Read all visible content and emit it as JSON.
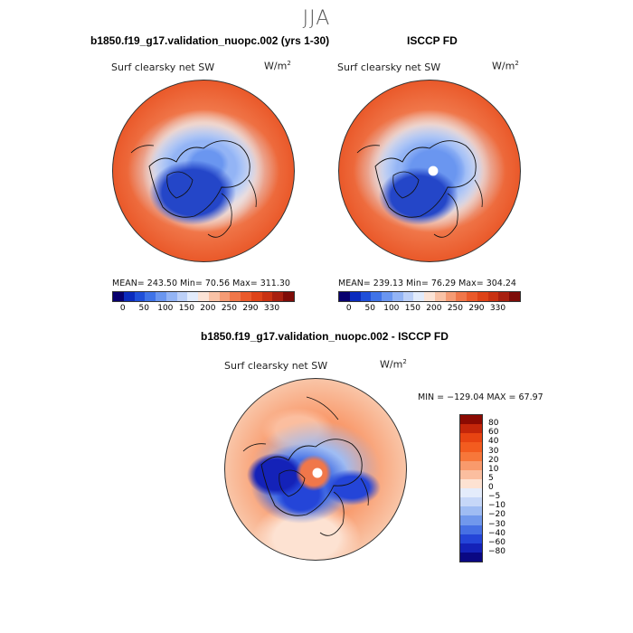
{
  "season": "JJA",
  "panels": [
    {
      "title": "b1850.f19_g17.validation_nuopc.002 (yrs 1-30)",
      "variable": "Surf clearsky net SW",
      "units_base": "W/m",
      "units_exp": "2",
      "stats": "MEAN= 243.50   Min=   70.56   Max= 311.30"
    },
    {
      "title": "ISCCP FD",
      "variable": "Surf clearsky net SW",
      "units_base": "W/m",
      "units_exp": "2",
      "stats": "MEAN= 239.13   Min=   76.29   Max= 304.24"
    }
  ],
  "abs_colorbar": {
    "labels": [
      "0",
      "50",
      "100",
      "150",
      "200",
      "250",
      "290",
      "330"
    ],
    "colors": [
      "#08006e",
      "#0b2bbd",
      "#1f4fd9",
      "#3f73e8",
      "#6a96f0",
      "#93b4f5",
      "#bcd0f8",
      "#e2ebfb",
      "#fbe3d6",
      "#f9c2a6",
      "#f59b74",
      "#f0774a",
      "#ea5a2b",
      "#de4318",
      "#c93212",
      "#a82010",
      "#7e0c08"
    ]
  },
  "diff_panel": {
    "title": "b1850.f19_g17.validation_nuopc.002 - ISCCP FD",
    "variable": "Surf clearsky net SW",
    "units_base": "W/m",
    "units_exp": "2",
    "stats": "MIN = −129.04   MAX =   67.97"
  },
  "diff_colorbar": {
    "labels": [
      "80",
      "60",
      "40",
      "30",
      "20",
      "10",
      "5",
      "0",
      "−5",
      "−10",
      "−20",
      "−30",
      "−40",
      "−60",
      "−80"
    ],
    "colors": [
      "#8b0a02",
      "#c4260a",
      "#e84412",
      "#f35c1f",
      "#f7773a",
      "#f99a6c",
      "#fbbe9f",
      "#fde2d2",
      "#e4ecfb",
      "#c6d7f8",
      "#9fbcf3",
      "#7198ec",
      "#4670e4",
      "#2445d8",
      "#1422b8",
      "#0a0883"
    ]
  },
  "colors": {
    "land": "#ef5a22",
    "ocean_far": "#f05a1f",
    "ice_blue": "#3b6fe0",
    "diff_bg": "#f9c4a6"
  }
}
